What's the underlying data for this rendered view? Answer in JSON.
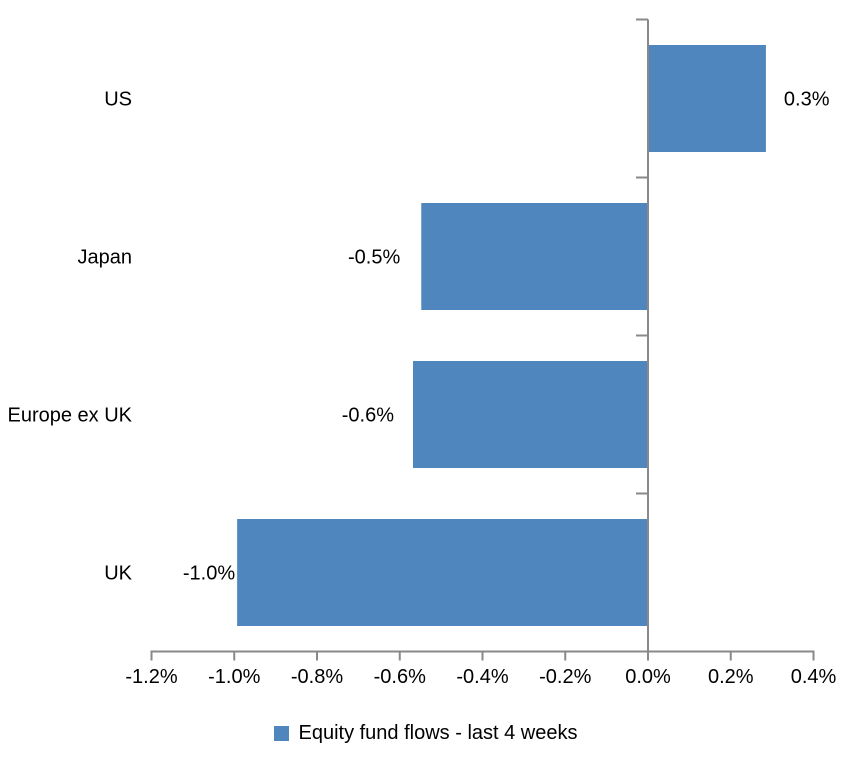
{
  "chart_data": {
    "type": "bar",
    "orientation": "horizontal",
    "title": "",
    "xlabel": "",
    "ylabel": "",
    "units": "percent",
    "categories": [
      "US",
      "Japan",
      "Europe ex UK",
      "UK"
    ],
    "series": [
      {
        "name": "Equity fund flows - last 4 weeks",
        "values": [
          0.3,
          -0.5,
          -0.6,
          -1.0
        ],
        "values_measured": [
          0.285,
          -0.548,
          -0.568,
          -0.993
        ],
        "data_labels": [
          "0.3%",
          "-0.5%",
          "-0.6%",
          "-1.0%"
        ]
      }
    ],
    "xlim": [
      -1.2,
      0.4
    ],
    "x_ticks": [
      {
        "value": -1.2,
        "label": "-1.2%"
      },
      {
        "value": -1.0,
        "label": "-1.0%"
      },
      {
        "value": -0.8,
        "label": "-0.8%"
      },
      {
        "value": -0.6,
        "label": "-0.6%"
      },
      {
        "value": -0.4,
        "label": "-0.4%"
      },
      {
        "value": -0.2,
        "label": "-0.2%"
      },
      {
        "value": 0.0,
        "label": "0.0%"
      },
      {
        "value": 0.2,
        "label": "0.2%"
      },
      {
        "value": 0.4,
        "label": "0.4%"
      }
    ],
    "grid": false,
    "legend_position": "bottom",
    "legend": [
      {
        "label": "Equity fund flows - last 4 weeks",
        "color": "#4E86BD"
      }
    ],
    "colors": {
      "bar": "#4E86BD",
      "axis": "#898989",
      "text": "#000000",
      "background": "#FFFFFF"
    }
  }
}
